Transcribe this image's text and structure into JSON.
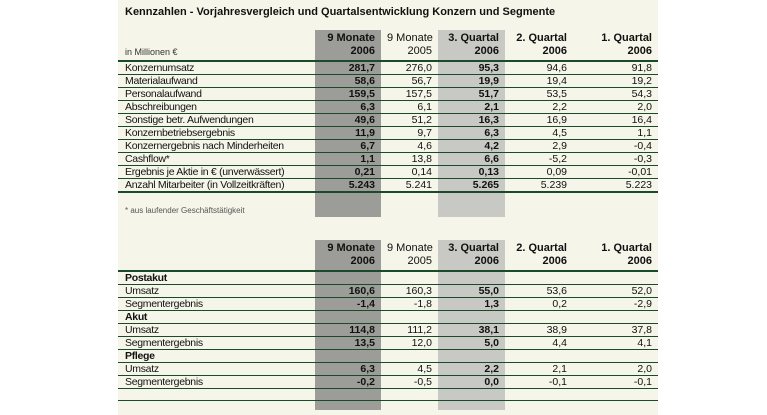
{
  "title": "Kennzahlen - Vorjahresvergleich und Quartalsentwicklung Konzern und Segmente",
  "unit_label": "in Millionen €",
  "footnote": "* aus laufender Geschäftstätigkeit",
  "colors": {
    "panel_background": "#f5f5e9",
    "highlight_column_dark": "#9c9c98",
    "highlight_column_light": "#c8c8c4",
    "rule_line": "#1b4a2a"
  },
  "column_headers": [
    {
      "period": "9 Monate",
      "year": "2006",
      "highlight": "dark",
      "bold": true
    },
    {
      "period": "9 Monate",
      "year": "2005",
      "highlight": "none",
      "bold": false
    },
    {
      "period": "3. Quartal",
      "year": "2006",
      "highlight": "light",
      "bold": true
    },
    {
      "period": "2. Quartal",
      "year": "2006",
      "highlight": "none",
      "bold": true
    },
    {
      "period": "1. Quartal",
      "year": "2006",
      "highlight": "none",
      "bold": true
    }
  ],
  "group_table": {
    "rows": [
      {
        "label": "Konzernumsatz",
        "values": [
          "281,7",
          "276,0",
          "95,3",
          "94,6",
          "91,8"
        ]
      },
      {
        "label": "Materialaufwand",
        "values": [
          "58,6",
          "56,7",
          "19,9",
          "19,4",
          "19,2"
        ]
      },
      {
        "label": "Personalaufwand",
        "values": [
          "159,5",
          "157,5",
          "51,7",
          "53,5",
          "54,3"
        ]
      },
      {
        "label": "Abschreibungen",
        "values": [
          "6,3",
          "6,1",
          "2,1",
          "2,2",
          "2,0"
        ]
      },
      {
        "label": "Sonstige betr. Aufwendungen",
        "values": [
          "49,6",
          "51,2",
          "16,3",
          "16,9",
          "16,4"
        ]
      },
      {
        "label": "Konzernbetriebsergebnis",
        "values": [
          "11,9",
          "9,7",
          "6,3",
          "4,5",
          "1,1"
        ]
      },
      {
        "label": "Konzernergebnis nach Minderheiten",
        "values": [
          "6,7",
          "4,6",
          "4,2",
          "2,9",
          "-0,4"
        ]
      },
      {
        "label": "Cashflow*",
        "values": [
          "1,1",
          "13,8",
          "6,6",
          "-5,2",
          "-0,3"
        ]
      },
      {
        "label": "Ergebnis je Aktie in € (unverwässert)",
        "values": [
          "0,21",
          "0,14",
          "0,13",
          "0,09",
          "-0,01"
        ]
      },
      {
        "label": "Anzahl Mitarbeiter (in Vollzeitkräften)",
        "values": [
          "5.243",
          "5.241",
          "5.265",
          "5.239",
          "5.223"
        ]
      }
    ]
  },
  "segment_table": {
    "sections": [
      {
        "name": "Postakut",
        "rows": [
          {
            "label": "Umsatz",
            "values": [
              "160,6",
              "160,3",
              "55,0",
              "53,6",
              "52,0"
            ]
          },
          {
            "label": "Segmentergebnis",
            "values": [
              "-1,4",
              "-1,8",
              "1,3",
              "0,2",
              "-2,9"
            ]
          }
        ]
      },
      {
        "name": "Akut",
        "rows": [
          {
            "label": "Umsatz",
            "values": [
              "114,8",
              "111,2",
              "38,1",
              "38,9",
              "37,8"
            ]
          },
          {
            "label": "Segmentergebnis",
            "values": [
              "13,5",
              "12,0",
              "5,0",
              "4,4",
              "4,1"
            ]
          }
        ]
      },
      {
        "name": "Pflege",
        "rows": [
          {
            "label": "Umsatz",
            "values": [
              "6,3",
              "4,5",
              "2,2",
              "2,1",
              "2,0"
            ]
          },
          {
            "label": "Segmentergebnis",
            "values": [
              "-0,2",
              "-0,5",
              "0,0",
              "-0,1",
              "-0,1"
            ]
          }
        ]
      }
    ]
  }
}
